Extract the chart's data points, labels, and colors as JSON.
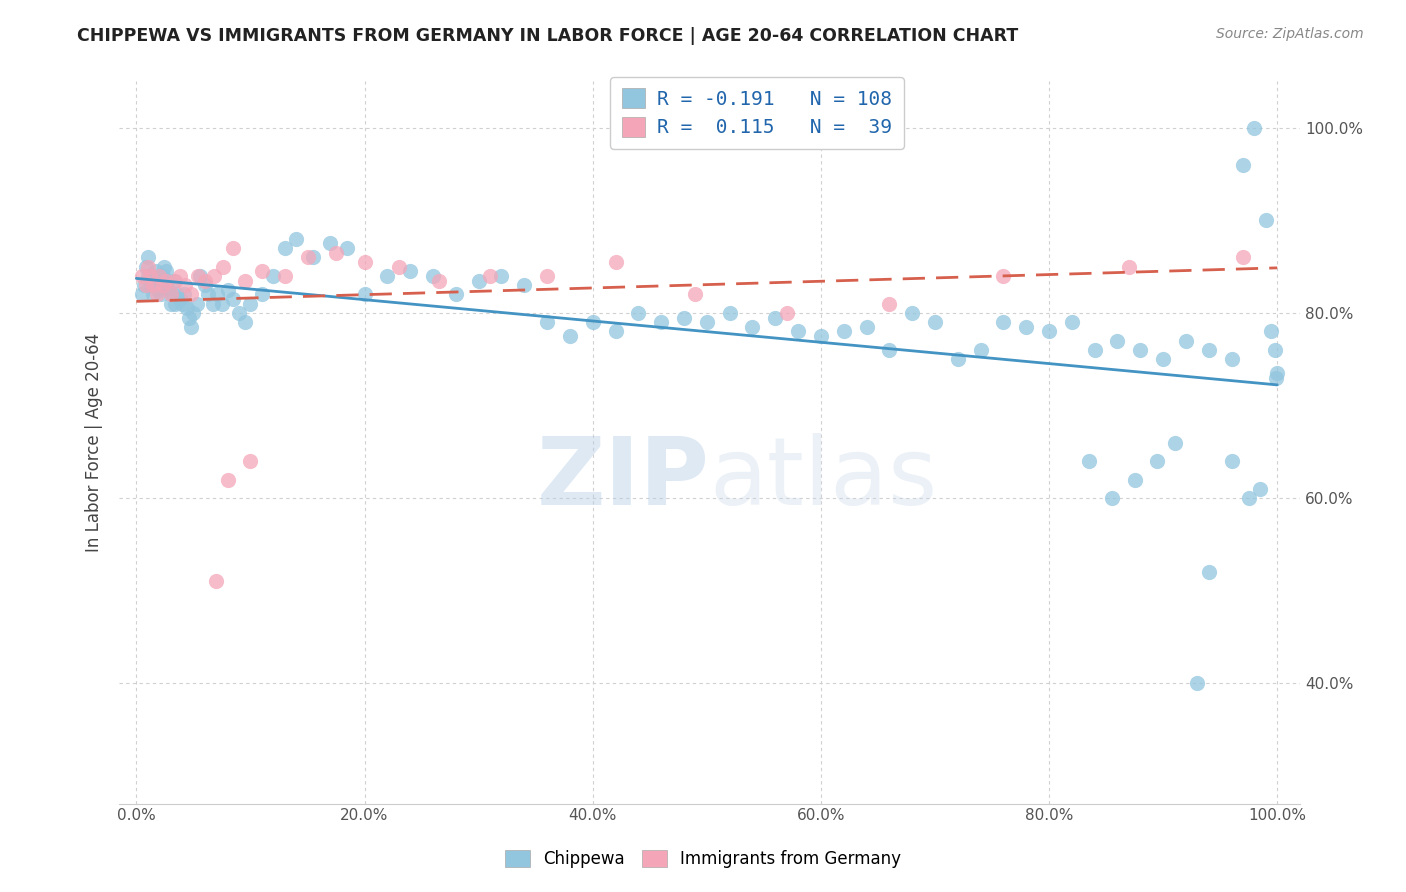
{
  "title": "CHIPPEWA VS IMMIGRANTS FROM GERMANY IN LABOR FORCE | AGE 20-64 CORRELATION CHART",
  "source": "Source: ZipAtlas.com",
  "ylabel": "In Labor Force | Age 20-64",
  "R_chippewa": -0.191,
  "N_chippewa": 108,
  "R_germany": 0.115,
  "N_germany": 39,
  "blue_color": "#92c5de",
  "pink_color": "#f4a6b8",
  "blue_line_color": "#4393c3",
  "pink_line_color": "#d6604d",
  "blue_text_color": "#2166ac",
  "label_color": "#3a6fa8",
  "watermark": "ZIPatlas",
  "background_color": "#ffffff",
  "grid_color": "#d0d0d0",
  "ytick_values": [
    0.4,
    0.6,
    0.8,
    1.0
  ],
  "xtick_values": [
    0.0,
    0.2,
    0.4,
    0.6,
    0.8,
    1.0
  ],
  "ylim_low": 0.27,
  "ylim_high": 1.05,
  "xlim_low": -0.015,
  "xlim_high": 1.02,
  "chip_x": [
    0.005,
    0.007,
    0.008,
    0.01,
    0.01,
    0.012,
    0.013,
    0.015,
    0.015,
    0.017,
    0.018,
    0.019,
    0.02,
    0.021,
    0.022,
    0.023,
    0.024,
    0.025,
    0.026,
    0.027,
    0.028,
    0.03,
    0.031,
    0.033,
    0.034,
    0.036,
    0.038,
    0.04,
    0.042,
    0.044,
    0.046,
    0.048,
    0.05,
    0.053,
    0.056,
    0.06,
    0.063,
    0.067,
    0.071,
    0.075,
    0.08,
    0.085,
    0.09,
    0.095,
    0.1,
    0.11,
    0.12,
    0.13,
    0.14,
    0.155,
    0.17,
    0.185,
    0.2,
    0.22,
    0.24,
    0.26,
    0.28,
    0.3,
    0.32,
    0.34,
    0.36,
    0.38,
    0.4,
    0.42,
    0.44,
    0.46,
    0.48,
    0.5,
    0.52,
    0.54,
    0.56,
    0.58,
    0.6,
    0.62,
    0.64,
    0.66,
    0.68,
    0.7,
    0.72,
    0.74,
    0.76,
    0.78,
    0.8,
    0.82,
    0.84,
    0.86,
    0.88,
    0.9,
    0.92,
    0.94,
    0.96,
    0.97,
    0.98,
    0.99,
    0.995,
    0.998,
    0.999,
    1.0,
    0.975,
    0.985,
    0.96,
    0.94,
    0.93,
    0.91,
    0.895,
    0.875,
    0.855,
    0.835
  ],
  "chip_y": [
    0.82,
    0.83,
    0.85,
    0.84,
    0.86,
    0.83,
    0.84,
    0.83,
    0.82,
    0.845,
    0.835,
    0.825,
    0.84,
    0.83,
    0.82,
    0.84,
    0.85,
    0.83,
    0.845,
    0.835,
    0.825,
    0.81,
    0.82,
    0.835,
    0.81,
    0.82,
    0.815,
    0.81,
    0.82,
    0.805,
    0.795,
    0.785,
    0.8,
    0.81,
    0.84,
    0.83,
    0.82,
    0.81,
    0.82,
    0.81,
    0.825,
    0.815,
    0.8,
    0.79,
    0.81,
    0.82,
    0.84,
    0.87,
    0.88,
    0.86,
    0.875,
    0.87,
    0.82,
    0.84,
    0.845,
    0.84,
    0.82,
    0.835,
    0.84,
    0.83,
    0.79,
    0.775,
    0.79,
    0.78,
    0.8,
    0.79,
    0.795,
    0.79,
    0.8,
    0.785,
    0.795,
    0.78,
    0.775,
    0.78,
    0.785,
    0.76,
    0.8,
    0.79,
    0.75,
    0.76,
    0.79,
    0.785,
    0.78,
    0.79,
    0.76,
    0.77,
    0.76,
    0.75,
    0.77,
    0.76,
    0.75,
    0.96,
    1.0,
    0.9,
    0.78,
    0.76,
    0.73,
    0.735,
    0.6,
    0.61,
    0.64,
    0.52,
    0.4,
    0.66,
    0.64,
    0.62,
    0.6,
    0.64
  ],
  "germ_x": [
    0.005,
    0.008,
    0.01,
    0.012,
    0.015,
    0.018,
    0.02,
    0.023,
    0.026,
    0.03,
    0.034,
    0.038,
    0.043,
    0.048,
    0.054,
    0.06,
    0.068,
    0.076,
    0.085,
    0.095,
    0.11,
    0.13,
    0.15,
    0.175,
    0.2,
    0.23,
    0.265,
    0.31,
    0.36,
    0.42,
    0.49,
    0.57,
    0.66,
    0.76,
    0.87,
    0.97,
    0.1,
    0.08,
    0.07
  ],
  "germ_y": [
    0.84,
    0.83,
    0.85,
    0.84,
    0.83,
    0.82,
    0.84,
    0.83,
    0.835,
    0.82,
    0.835,
    0.84,
    0.83,
    0.82,
    0.84,
    0.835,
    0.84,
    0.85,
    0.87,
    0.835,
    0.845,
    0.84,
    0.86,
    0.865,
    0.855,
    0.85,
    0.835,
    0.84,
    0.84,
    0.855,
    0.82,
    0.8,
    0.81,
    0.84,
    0.85,
    0.86,
    0.64,
    0.62,
    0.51
  ]
}
